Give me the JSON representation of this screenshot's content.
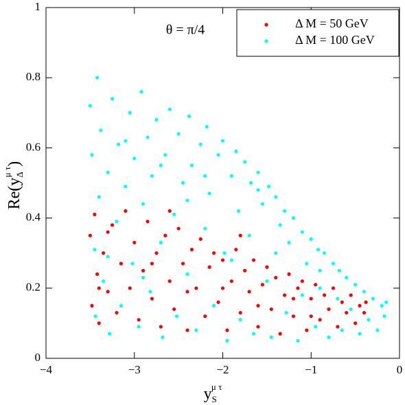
{
  "chart_data": {
    "type": "scatter",
    "annotation": "θ = π/4",
    "xlabel": {
      "text": "y",
      "sub": "S",
      "sup": "μ τ"
    },
    "ylabel": {
      "text": "Re(y",
      "sub": "Δ",
      "sup": "μ τ",
      "close": ")"
    },
    "xlim": [
      -4,
      0
    ],
    "xticks": [
      {
        "value": -4,
        "label": "−4"
      },
      {
        "value": -3,
        "label": "−3"
      },
      {
        "value": -2,
        "label": "−2"
      },
      {
        "value": -1,
        "label": "−1"
      },
      0
    ],
    "ylim": [
      0,
      1
    ],
    "yticks": [
      0,
      0.2,
      0.4,
      0.6,
      0.8,
      1
    ],
    "legend": "upper right",
    "series": [
      {
        "name": "Δ M = 100 GeV",
        "color": "#00ffff",
        "x": [
          -3.5,
          -3.48,
          -3.45,
          -3.44,
          -3.42,
          -3.4,
          -3.38,
          -3.35,
          -3.3,
          -3.28,
          -3.25,
          -3.2,
          -3.18,
          -3.15,
          -3.1,
          -3.05,
          -3.02,
          -3.0,
          -2.95,
          -2.92,
          -2.9,
          -2.85,
          -2.82,
          -2.8,
          -2.75,
          -2.7,
          -2.68,
          -2.65,
          -2.6,
          -2.55,
          -2.52,
          -2.5,
          -2.45,
          -2.4,
          -2.38,
          -2.35,
          -2.3,
          -2.25,
          -2.2,
          -2.18,
          -2.15,
          -2.1,
          -2.05,
          -2.0,
          -1.98,
          -1.95,
          -1.9,
          -1.85,
          -1.82,
          -1.8,
          -1.75,
          -1.7,
          -1.68,
          -1.65,
          -1.6,
          -1.55,
          -1.5,
          -1.48,
          -1.45,
          -1.4,
          -1.35,
          -1.3,
          -1.28,
          -1.25,
          -1.2,
          -1.15,
          -1.1,
          -1.05,
          -1.0,
          -0.95,
          -0.92,
          -0.9,
          -0.85,
          -0.8,
          -0.75,
          -0.7,
          -0.68,
          -0.65,
          -0.6,
          -0.55,
          -0.5,
          -0.45,
          -0.4,
          -0.35,
          -0.3,
          -0.25,
          -0.2,
          -0.17,
          -0.15,
          -3.3,
          -2.9,
          -2.4,
          -1.9,
          -1.4,
          -0.9,
          -2.7,
          -3.1,
          -1.6,
          -2.2,
          -1.1
        ],
        "values": [
          0.72,
          0.58,
          0.31,
          0.12,
          0.8,
          0.46,
          0.65,
          0.22,
          0.53,
          0.07,
          0.74,
          0.39,
          0.61,
          0.15,
          0.49,
          0.7,
          0.27,
          0.57,
          0.09,
          0.76,
          0.44,
          0.63,
          0.19,
          0.52,
          0.68,
          0.33,
          0.06,
          0.58,
          0.71,
          0.41,
          0.12,
          0.64,
          0.5,
          0.24,
          0.69,
          0.55,
          0.08,
          0.61,
          0.37,
          0.66,
          0.47,
          0.15,
          0.58,
          0.62,
          0.3,
          0.05,
          0.52,
          0.59,
          0.42,
          0.11,
          0.56,
          0.35,
          0.5,
          0.07,
          0.53,
          0.44,
          0.22,
          0.49,
          0.06,
          0.46,
          0.38,
          0.42,
          0.13,
          0.33,
          0.4,
          0.05,
          0.36,
          0.27,
          0.34,
          0.09,
          0.31,
          0.2,
          0.3,
          0.06,
          0.27,
          0.17,
          0.25,
          0.08,
          0.23,
          0.14,
          0.21,
          0.07,
          0.19,
          0.11,
          0.17,
          0.08,
          0.15,
          0.12,
          0.16,
          0.29,
          0.23,
          0.45,
          0.28,
          0.3,
          0.25,
          0.55,
          0.62,
          0.48,
          0.52,
          0.18
        ]
      },
      {
        "name": "Δ M = 50 GeV",
        "color": "#ff0000",
        "x": [
          -3.5,
          -3.48,
          -3.45,
          -3.42,
          -3.4,
          -3.35,
          -3.3,
          -3.25,
          -3.2,
          -3.15,
          -3.1,
          -3.05,
          -3.0,
          -2.95,
          -2.9,
          -2.85,
          -2.8,
          -2.75,
          -2.7,
          -2.65,
          -2.6,
          -2.55,
          -2.5,
          -2.45,
          -2.4,
          -2.35,
          -2.3,
          -2.25,
          -2.2,
          -2.15,
          -2.1,
          -2.05,
          -2.0,
          -1.95,
          -1.9,
          -1.85,
          -1.8,
          -1.75,
          -1.7,
          -1.65,
          -1.6,
          -1.55,
          -1.5,
          -1.45,
          -1.4,
          -1.35,
          -1.3,
          -1.25,
          -1.2,
          -1.15,
          -1.1,
          -1.05,
          -1.0,
          -0.95,
          -0.9,
          -0.85,
          -0.8,
          -0.75,
          -0.7,
          -0.65,
          -0.6,
          -0.55,
          -0.5,
          -0.45,
          -0.4,
          -0.38,
          -3.3,
          -2.6,
          -2.0,
          -1.6,
          -1.2,
          -2.8,
          -3.4,
          -1.8,
          -2.4,
          -1.0
        ],
        "values": [
          0.35,
          0.15,
          0.41,
          0.24,
          0.1,
          0.3,
          0.19,
          0.38,
          0.13,
          0.27,
          0.42,
          0.2,
          0.33,
          0.11,
          0.25,
          0.39,
          0.17,
          0.3,
          0.09,
          0.35,
          0.22,
          0.14,
          0.37,
          0.27,
          0.08,
          0.31,
          0.2,
          0.34,
          0.12,
          0.26,
          0.3,
          0.16,
          0.28,
          0.08,
          0.22,
          0.31,
          0.13,
          0.25,
          0.19,
          0.28,
          0.09,
          0.21,
          0.26,
          0.14,
          0.23,
          0.07,
          0.18,
          0.24,
          0.12,
          0.2,
          0.22,
          0.08,
          0.17,
          0.21,
          0.11,
          0.18,
          0.14,
          0.2,
          0.09,
          0.16,
          0.13,
          0.18,
          0.1,
          0.15,
          0.13,
          0.16,
          0.36,
          0.42,
          0.2,
          0.15,
          0.17,
          0.27,
          0.2,
          0.35,
          0.19,
          0.12
        ]
      }
    ]
  }
}
